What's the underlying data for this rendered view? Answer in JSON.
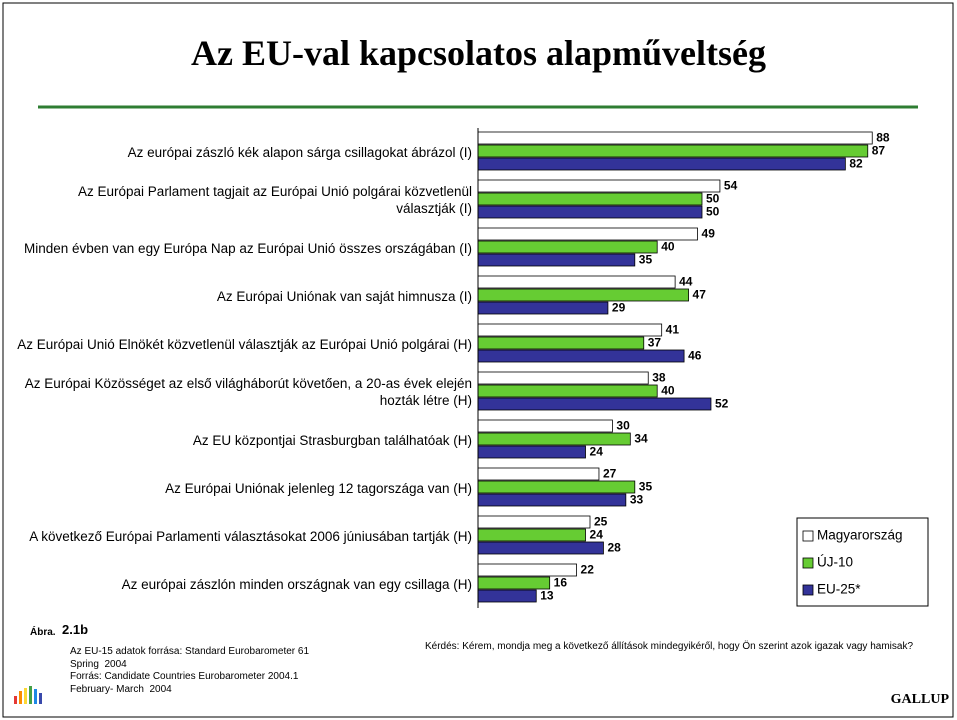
{
  "chart_data": {
    "type": "bar",
    "orientation": "horizontal",
    "title": "Az EU-val kapcsolatos alapműveltség",
    "categories": [
      "Az európai zászló kék alapon sárga csillagokat ábrázol (I)",
      "Az Európai Parlament tagjait az Európai Unió polgárai közvetlenül választják (I)",
      "Minden évben van egy Európa Nap az Európai Unió összes országában (I)",
      "Az Európai Uniónak van saját himnusza (I)",
      "Az Európai Unió Elnökét közvetlenül választják az Európai Unió polgárai (H)",
      "Az Európai Közösséget az első világháborút követően, a 20-as évek elején hozták létre (H)",
      "Az EU központjai Strasburgban találhatóak (H)",
      "Az Európai Uniónak jelenleg 12 tagországa van (H)",
      "A következő Európai Parlamenti választásokat 2006 júniusában tartják (H)",
      "Az európai zászlón minden országnak van egy csillaga (H)"
    ],
    "series": [
      {
        "name": "Magyarország",
        "color": "#ffffff",
        "values": [
          88,
          54,
          49,
          44,
          41,
          38,
          30,
          27,
          25,
          22
        ]
      },
      {
        "name": "ÚJ-10",
        "color": "#66cc33",
        "values": [
          87,
          50,
          40,
          47,
          37,
          40,
          34,
          35,
          24,
          16
        ]
      },
      {
        "name": "EU-25*",
        "color": "#333399",
        "values": [
          82,
          50,
          35,
          29,
          46,
          52,
          24,
          33,
          28,
          13
        ]
      }
    ],
    "xlim": [
      0,
      100
    ],
    "legend": "lower right",
    "figure_label": "Ábra.",
    "figure_number": "2.1b",
    "sources": [
      "Az EU-15 adatok forrása: Standard Eurobarometer 61",
      "Spring  2004",
      "Forrás: Candidate Countries Eurobarometer 2004.1",
      "February- March  2004"
    ],
    "question": "Kérdés:  Kérem, mondja meg a következő állítások mindegyikéről, hogy Ön szerint azok igazak vagy hamisak?",
    "brand": "GALLUP"
  }
}
